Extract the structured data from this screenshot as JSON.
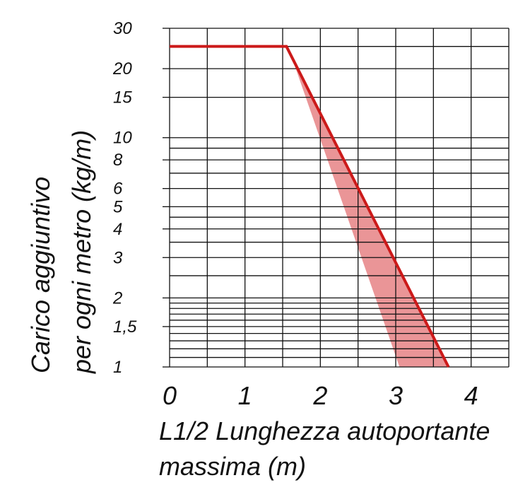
{
  "chart_data": {
    "type": "line",
    "title": "",
    "ylabel_line1": "Carico aggiuntivo",
    "ylabel_line2": "per ogni metro (kg/m)",
    "xlabel_line1": "L1/2 Lunghezza autoportante",
    "xlabel_line2": "massima (m)",
    "y_scale": "log",
    "xlim": [
      0,
      4.5
    ],
    "ylim": [
      1,
      30
    ],
    "x_ticks": [
      {
        "value": 0,
        "label": "0"
      },
      {
        "value": 1,
        "label": "1"
      },
      {
        "value": 2,
        "label": "2"
      },
      {
        "value": 3,
        "label": "3"
      },
      {
        "value": 4,
        "label": "4"
      }
    ],
    "y_ticks": [
      {
        "value": 30,
        "label": "30"
      },
      {
        "value": 20,
        "label": "20"
      },
      {
        "value": 15,
        "label": "15"
      },
      {
        "value": 10,
        "label": "10"
      },
      {
        "value": 8,
        "label": "8"
      },
      {
        "value": 6,
        "label": "6"
      },
      {
        "value": 5,
        "label": "5"
      },
      {
        "value": 4,
        "label": "4"
      },
      {
        "value": 3,
        "label": "3"
      },
      {
        "value": 2,
        "label": "2"
      },
      {
        "value": 1.5,
        "label": "1,5"
      },
      {
        "value": 1,
        "label": "1"
      }
    ],
    "x_gridlines": [
      0,
      0.5,
      1,
      1.5,
      2,
      2.5,
      3,
      3.5,
      4,
      4.5
    ],
    "y_gridlines": [
      1,
      1.1,
      1.2,
      1.3,
      1.4,
      1.5,
      1.6,
      1.7,
      1.8,
      1.9,
      2,
      2.5,
      3,
      3.5,
      4,
      4.5,
      5,
      6,
      7,
      8,
      9,
      10,
      15,
      20,
      25,
      30
    ],
    "grid": true,
    "series": [
      {
        "type": "line",
        "color": "#cc1a1a",
        "points": [
          [
            0,
            25
          ],
          [
            1.55,
            25
          ],
          [
            3.7,
            1
          ]
        ]
      }
    ],
    "band": {
      "color": "#e88a8c",
      "upper": [
        [
          1.6,
          23.5
        ],
        [
          3.7,
          1
        ]
      ],
      "lower": [
        [
          1.6,
          23.5
        ],
        [
          3.05,
          1
        ]
      ]
    }
  }
}
